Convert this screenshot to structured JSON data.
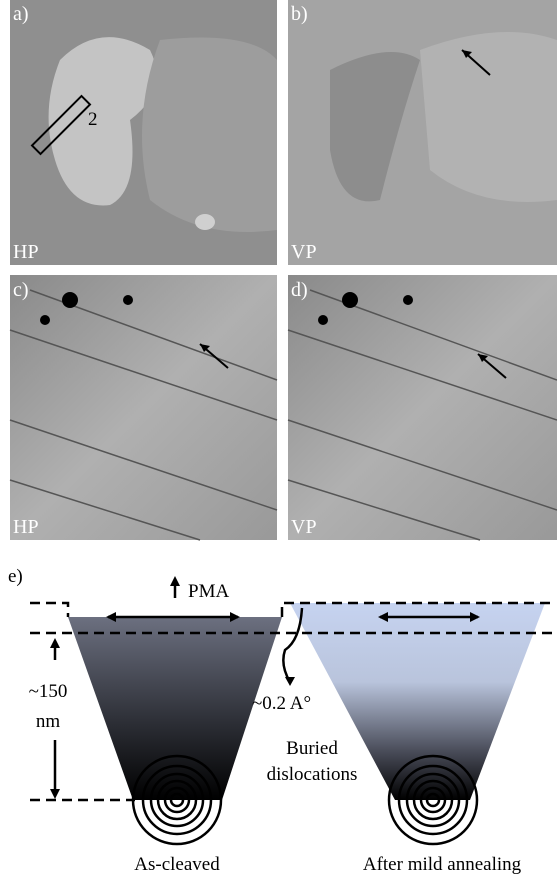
{
  "panels": [
    {
      "label": "a)",
      "mode": "HP",
      "marker": "2"
    },
    {
      "label": "b)",
      "mode": "VP"
    },
    {
      "label": "c)",
      "mode": "HP"
    },
    {
      "label": "d)",
      "mode": "VP"
    }
  ],
  "schematic": {
    "label": "e)",
    "pma": "PMA",
    "depth": "~150",
    "depth_unit": "nm",
    "step": "~0.2 A°",
    "buried": [
      "Buried",
      "dislocations"
    ],
    "captions": [
      "As-cleaved",
      "After mild annealing"
    ]
  }
}
